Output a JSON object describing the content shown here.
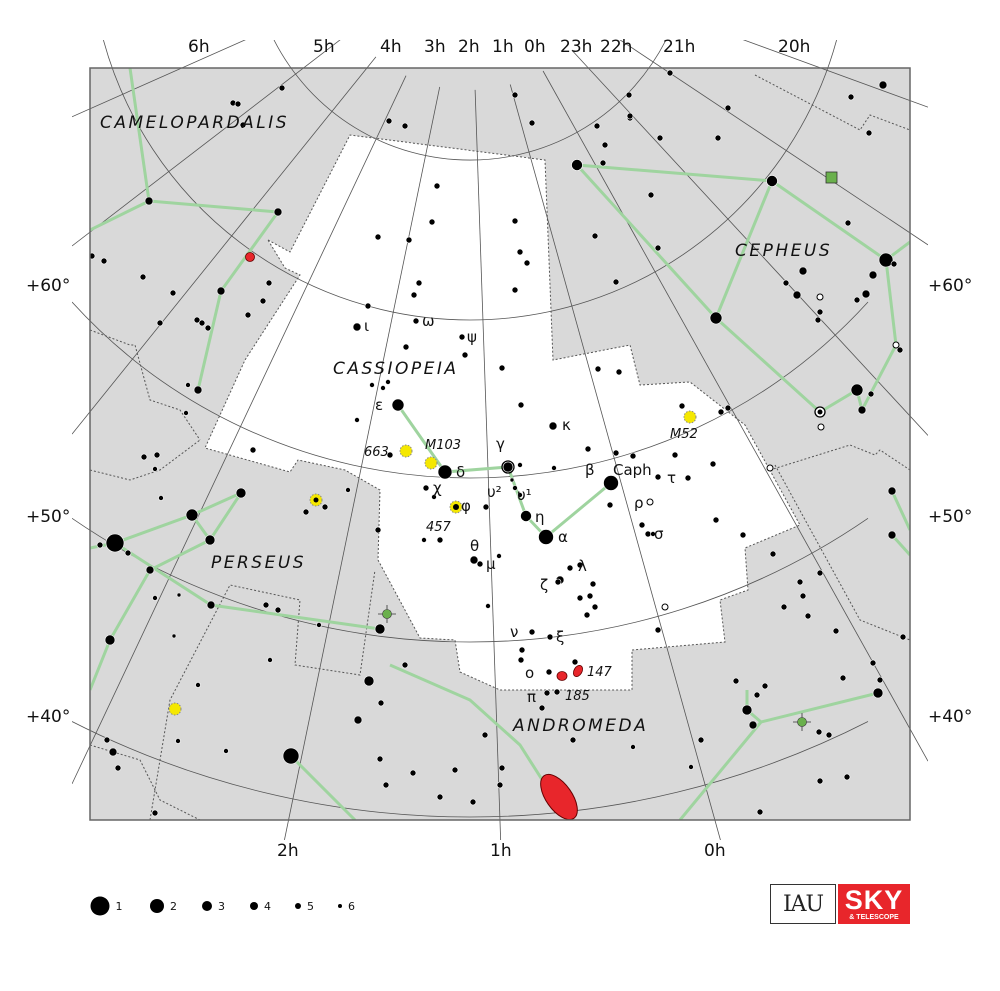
{
  "chart": {
    "ra_labels_top": [
      "6h",
      "5h",
      "4h",
      "3h",
      "2h",
      "1h",
      "0h",
      "23h",
      "22h",
      "21h",
      "20h"
    ],
    "ra_labels_bottom": [
      "2h",
      "1h",
      "0h"
    ],
    "dec_labels": [
      "+60°",
      "+50°",
      "+40°"
    ],
    "constellations": [
      "CAMELOPARDALIS",
      "CASSIOPEIA",
      "CEPHEUS",
      "PERSEUS",
      "ANDROMEDA"
    ],
    "star_labels": {
      "epsilon": "ε",
      "delta": "δ",
      "gamma": "γ",
      "eta": "η",
      "alpha": "α",
      "beta": "β",
      "caph": "Caph",
      "kappa": "κ",
      "iota": "ι",
      "omega": "ω",
      "psi": "ψ",
      "chi": "χ",
      "phi": "φ",
      "theta": "θ",
      "mu": "μ",
      "zeta": "ζ",
      "lambda": "λ",
      "nu": "ν",
      "xi": "ξ",
      "omicron": "ο",
      "pi": "π",
      "tau": "τ",
      "rho": "ρ",
      "sigma": "σ",
      "upsilon2": "υ²",
      "upsilon1": "υ¹"
    },
    "deep_sky_labels": [
      "M103",
      "663",
      "457",
      "M52",
      "147",
      "185"
    ],
    "colors": {
      "sky": "#d9d9d9",
      "constellation_region": "#ffffff",
      "figure_lines": "#9fd49f",
      "open_cluster": "#f5e800",
      "galaxy": "#e8262b",
      "nebula": "#6ab04c"
    }
  },
  "legend": {
    "magnitudes": [
      "1",
      "2",
      "3",
      "4",
      "5",
      "6"
    ]
  },
  "logos": {
    "iau": "IAU",
    "sky_big": "SKY",
    "sky_small": "& TELESCOPE"
  }
}
